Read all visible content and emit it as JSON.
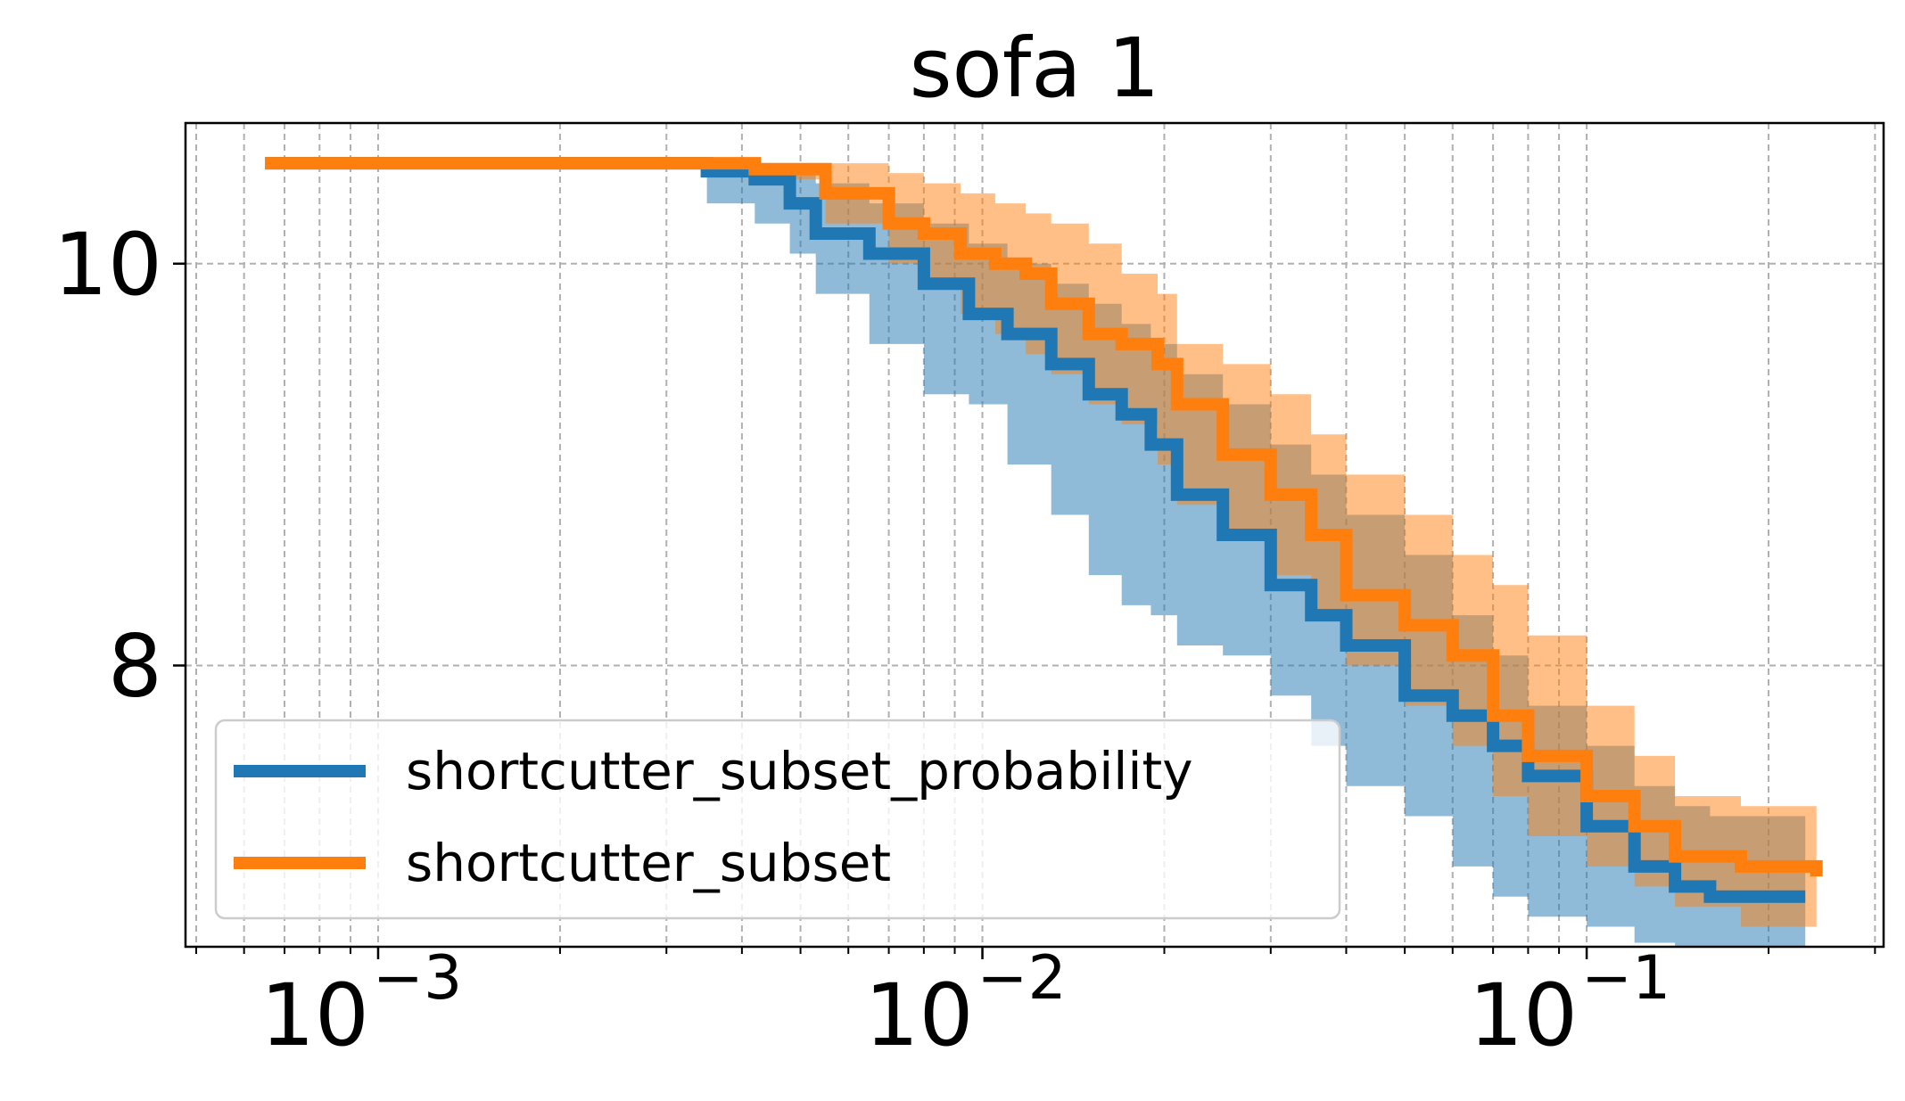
{
  "chart_data": {
    "type": "line",
    "title": "sofa 1",
    "xlabel": "",
    "ylabel": "",
    "x_scale": "log",
    "xlim": [
      0.00048,
      0.31
    ],
    "ylim": [
      6.6,
      10.7
    ],
    "x_ticks": [
      {
        "value": 0.001,
        "base": "10",
        "exp": "−3"
      },
      {
        "value": 0.01,
        "base": "10",
        "exp": "−2"
      },
      {
        "value": 0.1,
        "base": "10",
        "exp": "−1"
      }
    ],
    "y_ticks": [
      {
        "value": 8,
        "label": "8"
      },
      {
        "value": 10,
        "label": "10"
      }
    ],
    "grid": true,
    "legend_position": "lower-left",
    "series": [
      {
        "name": "shortcutter_subset_probability",
        "color": "#1f77b4",
        "band_color": "#1f77b4",
        "band_opacity": 0.5,
        "x": [
          0.00065,
          0.0025,
          0.0035,
          0.0042,
          0.0048,
          0.0053,
          0.0065,
          0.008,
          0.0095,
          0.011,
          0.013,
          0.015,
          0.017,
          0.019,
          0.021,
          0.025,
          0.03,
          0.035,
          0.04,
          0.05,
          0.06,
          0.07,
          0.08,
          0.1,
          0.12,
          0.14,
          0.16,
          0.23
        ],
        "y": [
          10.5,
          10.5,
          10.46,
          10.42,
          10.3,
          10.15,
          10.05,
          9.9,
          9.75,
          9.65,
          9.5,
          9.35,
          9.25,
          9.1,
          8.85,
          8.65,
          8.4,
          8.25,
          8.1,
          7.85,
          7.75,
          7.6,
          7.45,
          7.2,
          7.0,
          6.9,
          6.85,
          6.85
        ],
        "lower": [
          10.5,
          10.5,
          10.3,
          10.2,
          10.05,
          9.85,
          9.6,
          9.35,
          9.3,
          9.0,
          8.75,
          8.45,
          8.3,
          8.25,
          8.1,
          8.05,
          7.85,
          7.6,
          7.4,
          7.25,
          7.0,
          6.85,
          6.75,
          6.7,
          6.62,
          6.6,
          6.6,
          6.6
        ],
        "upper": [
          10.5,
          10.5,
          10.5,
          10.48,
          10.45,
          10.4,
          10.3,
          10.2,
          10.1,
          10.0,
          9.9,
          9.8,
          9.7,
          9.6,
          9.45,
          9.3,
          9.1,
          8.95,
          8.75,
          8.55,
          8.25,
          8.05,
          7.8,
          7.6,
          7.4,
          7.3,
          7.25,
          7.25
        ]
      },
      {
        "name": "shortcutter_subset",
        "color": "#ff7f0e",
        "band_color": "#ff7f0e",
        "band_opacity": 0.5,
        "x": [
          0.00065,
          0.0025,
          0.0037,
          0.0042,
          0.0055,
          0.007,
          0.008,
          0.0092,
          0.0105,
          0.0118,
          0.013,
          0.015,
          0.017,
          0.0195,
          0.021,
          0.025,
          0.03,
          0.035,
          0.04,
          0.05,
          0.06,
          0.07,
          0.08,
          0.1,
          0.12,
          0.14,
          0.18,
          0.24
        ],
        "y": [
          10.5,
          10.5,
          10.5,
          10.47,
          10.35,
          10.2,
          10.15,
          10.05,
          10.0,
          9.95,
          9.8,
          9.65,
          9.6,
          9.5,
          9.3,
          9.05,
          8.85,
          8.65,
          8.35,
          8.2,
          8.05,
          7.75,
          7.55,
          7.35,
          7.2,
          7.05,
          7.0,
          6.95
        ],
        "lower": [
          10.5,
          10.5,
          10.5,
          10.42,
          10.2,
          10.0,
          9.9,
          9.75,
          9.65,
          9.55,
          9.45,
          9.3,
          9.2,
          9.0,
          8.8,
          8.65,
          8.45,
          8.25,
          8.0,
          7.8,
          7.6,
          7.35,
          7.15,
          7.0,
          6.9,
          6.8,
          6.7,
          6.6
        ],
        "upper": [
          10.5,
          10.5,
          10.5,
          10.5,
          10.5,
          10.45,
          10.4,
          10.35,
          10.3,
          10.25,
          10.2,
          10.1,
          9.95,
          9.85,
          9.6,
          9.5,
          9.35,
          9.15,
          8.95,
          8.75,
          8.55,
          8.4,
          8.15,
          7.8,
          7.55,
          7.35,
          7.3,
          7.3
        ]
      }
    ]
  }
}
